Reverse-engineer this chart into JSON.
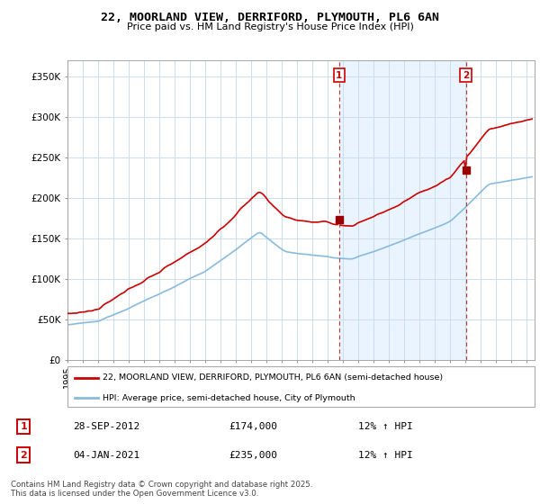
{
  "title": "22, MOORLAND VIEW, DERRIFORD, PLYMOUTH, PL6 6AN",
  "subtitle": "Price paid vs. HM Land Registry's House Price Index (HPI)",
  "ylabel_ticks": [
    "£0",
    "£50K",
    "£100K",
    "£150K",
    "£200K",
    "£250K",
    "£300K",
    "£350K"
  ],
  "ytick_values": [
    0,
    50000,
    100000,
    150000,
    200000,
    250000,
    300000,
    350000
  ],
  "ylim": [
    0,
    370000
  ],
  "xlim_start": 1995.0,
  "xlim_end": 2025.5,
  "sale1_date": 2012.74,
  "sale1_price": 174000,
  "sale1_label": "1",
  "sale2_date": 2021.01,
  "sale2_price": 235000,
  "sale2_label": "2",
  "property_color": "#cc0000",
  "hpi_color": "#88bbdd",
  "legend_property": "22, MOORLAND VIEW, DERRIFORD, PLYMOUTH, PL6 6AN (semi-detached house)",
  "legend_hpi": "HPI: Average price, semi-detached house, City of Plymouth",
  "table_row1": [
    "1",
    "28-SEP-2012",
    "£174,000",
    "12% ↑ HPI"
  ],
  "table_row2": [
    "2",
    "04-JAN-2021",
    "£235,000",
    "12% ↑ HPI"
  ],
  "footnote": "Contains HM Land Registry data © Crown copyright and database right 2025.\nThis data is licensed under the Open Government Licence v3.0.",
  "background_color": "#ffffff",
  "grid_color": "#ccddee",
  "shade_color": "#ddeeff"
}
